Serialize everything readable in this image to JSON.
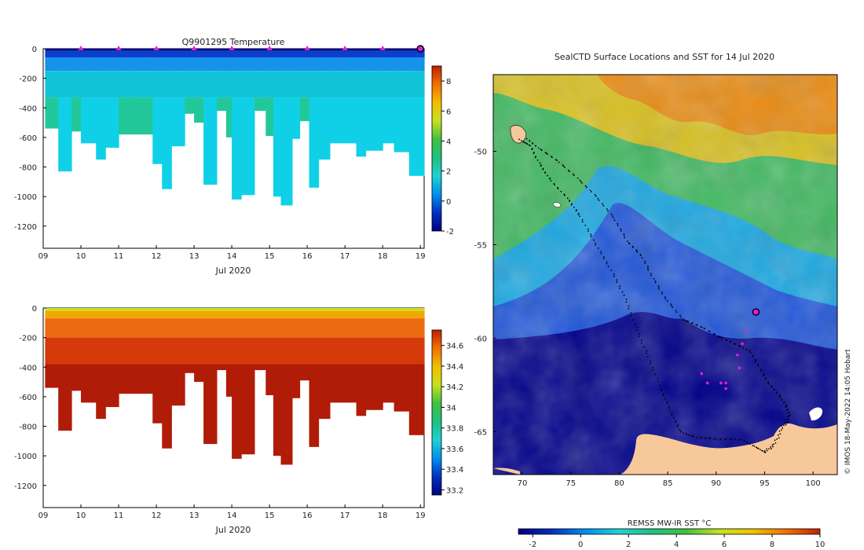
{
  "chart_data": [
    {
      "type": "heatmap",
      "title": "Q9901295  Temperature",
      "xlabel": "Jul 2020",
      "x_ticks": [
        "09",
        "10",
        "11",
        "12",
        "13",
        "14",
        "15",
        "16",
        "17",
        "18",
        "19"
      ],
      "xlim": [
        9,
        19.1
      ],
      "ylim": [
        -1350,
        0
      ],
      "y_ticks": [
        0,
        -200,
        -400,
        -600,
        -800,
        -1000,
        -1200
      ],
      "colorbar": {
        "ticks": [
          8,
          6,
          4,
          2,
          0,
          -2
        ],
        "range": [
          -2,
          9
        ],
        "colors": [
          "#00007f",
          "#0030c0",
          "#0090f0",
          "#20d0d0",
          "#20c080",
          "#40c040",
          "#c8e020",
          "#f0c000",
          "#f07000",
          "#c02000"
        ]
      },
      "surface_markers_day": [
        10,
        11,
        12,
        13,
        14,
        15,
        16,
        17,
        18
      ],
      "last_profile_day": 19,
      "profiles": [
        {
          "t": 9.05,
          "max_depth": 540
        },
        {
          "t": 9.4,
          "max_depth": 830
        },
        {
          "t": 9.75,
          "max_depth": 560
        },
        {
          "t": 10.0,
          "max_depth": 640
        },
        {
          "t": 10.4,
          "max_depth": 750
        },
        {
          "t": 10.65,
          "max_depth": 670
        },
        {
          "t": 11.0,
          "max_depth": 580
        },
        {
          "t": 11.4,
          "max_depth": 580
        },
        {
          "t": 11.9,
          "max_depth": 780
        },
        {
          "t": 12.15,
          "max_depth": 950
        },
        {
          "t": 12.4,
          "max_depth": 660
        },
        {
          "t": 12.75,
          "max_depth": 440
        },
        {
          "t": 13.0,
          "max_depth": 500
        },
        {
          "t": 13.25,
          "max_depth": 920
        },
        {
          "t": 13.6,
          "max_depth": 420
        },
        {
          "t": 13.85,
          "max_depth": 600
        },
        {
          "t": 14.0,
          "max_depth": 1020
        },
        {
          "t": 14.25,
          "max_depth": 990
        },
        {
          "t": 14.6,
          "max_depth": 420
        },
        {
          "t": 14.9,
          "max_depth": 590
        },
        {
          "t": 15.1,
          "max_depth": 1000
        },
        {
          "t": 15.3,
          "max_depth": 1060
        },
        {
          "t": 15.6,
          "max_depth": 610
        },
        {
          "t": 15.8,
          "max_depth": 490
        },
        {
          "t": 16.05,
          "max_depth": 940
        },
        {
          "t": 16.3,
          "max_depth": 750
        },
        {
          "t": 16.6,
          "max_depth": 640
        },
        {
          "t": 17.0,
          "max_depth": 640
        },
        {
          "t": 17.3,
          "max_depth": 730
        },
        {
          "t": 17.55,
          "max_depth": 690
        },
        {
          "t": 18.0,
          "max_depth": 640
        },
        {
          "t": 18.3,
          "max_depth": 700
        },
        {
          "t": 18.7,
          "max_depth": 860
        },
        {
          "t": 19.05,
          "max_depth": 860
        }
      ]
    },
    {
      "type": "heatmap",
      "title": "",
      "xlabel": "Jul 2020",
      "x_ticks": [
        "09",
        "10",
        "11",
        "12",
        "13",
        "14",
        "15",
        "16",
        "17",
        "18",
        "19"
      ],
      "xlim": [
        9,
        19.1
      ],
      "ylim": [
        -1350,
        0
      ],
      "y_ticks": [
        0,
        -200,
        -400,
        -600,
        -800,
        -1000,
        -1200
      ],
      "colorbar": {
        "ticks": [
          34.6,
          34.4,
          34.2,
          34,
          33.8,
          33.6,
          33.4,
          33.2
        ],
        "range": [
          33.15,
          34.75
        ],
        "colors": [
          "#00007f",
          "#0030c0",
          "#0090f0",
          "#20d0d0",
          "#20c080",
          "#40c040",
          "#c8e020",
          "#f0c000",
          "#f07000",
          "#c02000"
        ]
      },
      "profiles_same_as_temperature": true
    },
    {
      "type": "heatmap",
      "title": "SealCTD Surface Locations and SST for 14 Jul 2020",
      "xlabel": "",
      "x_ticks": [
        70,
        75,
        80,
        85,
        90,
        95,
        100
      ],
      "y_ticks": [
        -50,
        -55,
        -60,
        -65
      ],
      "lon_range": [
        67,
        102.5
      ],
      "lat_range": [
        -67.3,
        -45.9
      ],
      "colorbar": {
        "label": "REMSS MW-IR SST °C",
        "ticks": [
          -2,
          0,
          2,
          4,
          6,
          8,
          10
        ],
        "range": [
          -2.6,
          10
        ],
        "colors": [
          "#00007f",
          "#0030c0",
          "#0090f0",
          "#20d0d0",
          "#20c080",
          "#40c040",
          "#c8e020",
          "#f0c000",
          "#f07000",
          "#c02000"
        ]
      },
      "credit": "© IMOS 18-May-2022 14:05 Hobart",
      "latest_position": {
        "lon": 94.1,
        "lat": -58.6
      },
      "recent_positions": [
        {
          "lon": 93.1,
          "lat": -59.6
        },
        {
          "lon": 92.7,
          "lat": -60.3
        },
        {
          "lon": 92.2,
          "lat": -60.9
        },
        {
          "lon": 92.4,
          "lat": -61.6
        },
        {
          "lon": 88.5,
          "lat": -61.9
        },
        {
          "lon": 89.1,
          "lat": -62.4
        },
        {
          "lon": 90.5,
          "lat": -62.4
        },
        {
          "lon": 91.0,
          "lat": -62.4
        },
        {
          "lon": 91.0,
          "lat": -62.7
        }
      ],
      "track": [
        {
          "lon": 69.8,
          "lat": -49.4
        },
        {
          "lon": 70.8,
          "lat": -49.7
        },
        {
          "lon": 71.8,
          "lat": -50.7
        },
        {
          "lon": 73.0,
          "lat": -51.6
        },
        {
          "lon": 74.8,
          "lat": -52.6
        },
        {
          "lon": 76.0,
          "lat": -53.5
        },
        {
          "lon": 77.5,
          "lat": -54.9
        },
        {
          "lon": 79.0,
          "lat": -56.2
        },
        {
          "lon": 80.5,
          "lat": -57.7
        },
        {
          "lon": 81.7,
          "lat": -59.4
        },
        {
          "lon": 83.0,
          "lat": -61.0
        },
        {
          "lon": 84.3,
          "lat": -62.7
        },
        {
          "lon": 85.3,
          "lat": -63.9
        },
        {
          "lon": 86.3,
          "lat": -65.0
        },
        {
          "lon": 87.8,
          "lat": -65.3
        },
        {
          "lon": 90.0,
          "lat": -65.4
        },
        {
          "lon": 92.5,
          "lat": -65.4
        },
        {
          "lon": 94.0,
          "lat": -65.8
        },
        {
          "lon": 95.0,
          "lat": -66.1
        },
        {
          "lon": 96.0,
          "lat": -65.7
        },
        {
          "lon": 96.8,
          "lat": -64.8
        },
        {
          "lon": 97.6,
          "lat": -64.2
        },
        {
          "lon": 97.2,
          "lat": -63.6
        },
        {
          "lon": 96.4,
          "lat": -63.0
        },
        {
          "lon": 95.4,
          "lat": -62.4
        },
        {
          "lon": 94.5,
          "lat": -61.6
        },
        {
          "lon": 93.5,
          "lat": -60.7
        },
        {
          "lon": 92.3,
          "lat": -60.4
        },
        {
          "lon": 90.6,
          "lat": -60.0
        },
        {
          "lon": 88.5,
          "lat": -59.4
        },
        {
          "lon": 86.6,
          "lat": -59.0
        },
        {
          "lon": 84.8,
          "lat": -57.9
        },
        {
          "lon": 83.5,
          "lat": -56.8
        },
        {
          "lon": 82.3,
          "lat": -55.6
        },
        {
          "lon": 80.8,
          "lat": -54.8
        },
        {
          "lon": 79.5,
          "lat": -53.6
        },
        {
          "lon": 77.6,
          "lat": -52.4
        },
        {
          "lon": 75.6,
          "lat": -51.4
        },
        {
          "lon": 73.6,
          "lat": -50.5
        },
        {
          "lon": 71.6,
          "lat": -49.8
        },
        {
          "lon": 70.4,
          "lat": -49.3
        }
      ]
    }
  ]
}
